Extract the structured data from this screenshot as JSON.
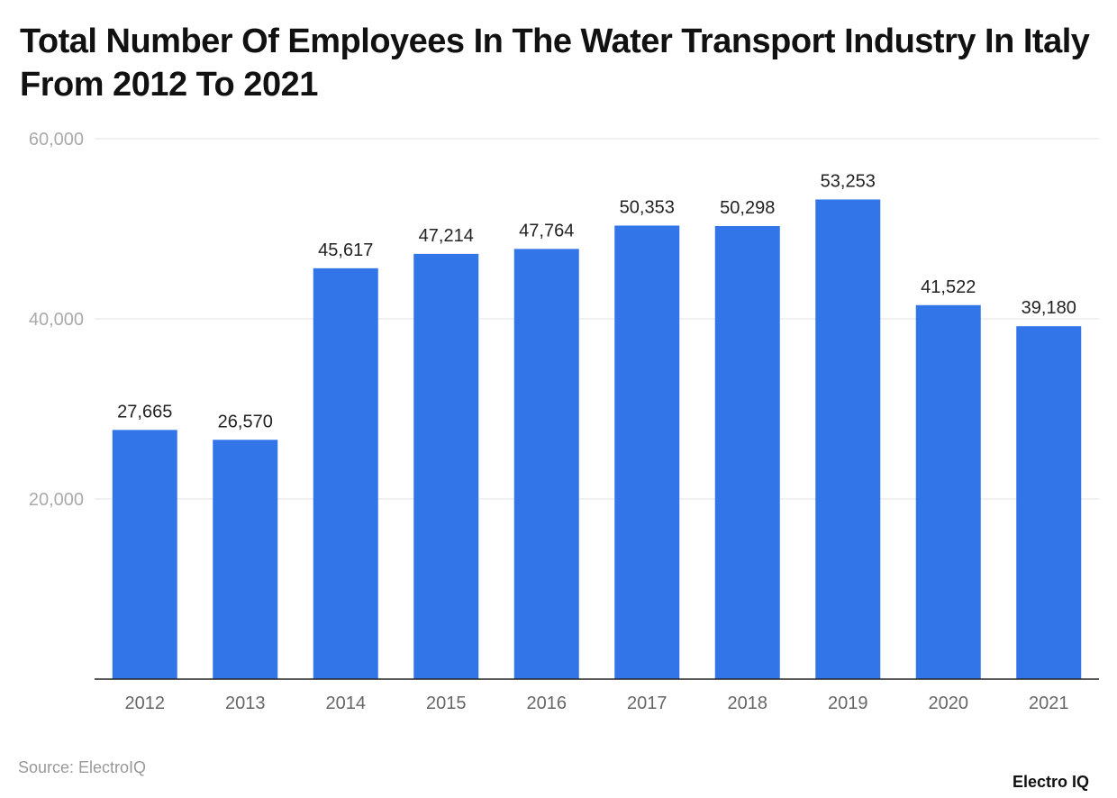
{
  "chart_data": {
    "type": "bar",
    "title": "Total Number Of Employees In The Water Transport Industry In Italy From 2012 To 2021",
    "categories": [
      "2012",
      "2013",
      "2014",
      "2015",
      "2016",
      "2017",
      "2018",
      "2019",
      "2020",
      "2021"
    ],
    "values": [
      27665,
      26570,
      45617,
      47214,
      47764,
      50353,
      50298,
      53253,
      41522,
      39180
    ],
    "data_labels": [
      "27,665",
      "26,570",
      "45,617",
      "47,214",
      "47,764",
      "50,353",
      "50,298",
      "53,253",
      "41,522",
      "39,180"
    ],
    "ylim": [
      0,
      60000
    ],
    "yticks": [
      20000,
      40000,
      60000
    ],
    "ytick_labels": [
      "20,000",
      "40,000",
      "60,000"
    ],
    "xlabel": "",
    "ylabel": "",
    "grid": true,
    "legend": "none",
    "bar_color": "#3275e8"
  },
  "source": "Source: ElectroIQ",
  "logo": "Electro IQ"
}
